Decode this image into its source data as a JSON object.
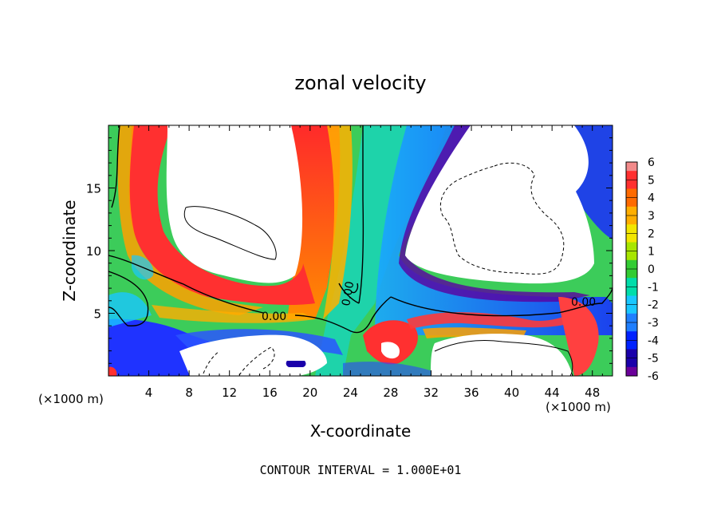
{
  "chart_data": {
    "type": "heatmap",
    "title": "zonal velocity",
    "xlabel": "X-coordinate",
    "ylabel": "Z-coordinate",
    "x_unit_left": "(×1000 m)",
    "x_unit_right": "(×1000 m)",
    "xlim": [
      0,
      50
    ],
    "ylim": [
      0,
      20
    ],
    "x_ticks": [
      4,
      8,
      12,
      16,
      20,
      24,
      28,
      32,
      36,
      40,
      44,
      48
    ],
    "y_ticks": [
      5,
      10,
      15
    ],
    "contour_label": "0.00",
    "contour_interval_text": "CONTOUR INTERVAL = 1.000E+01",
    "colorbar": {
      "levels": [
        6,
        5,
        4,
        3,
        2,
        1,
        0,
        -1,
        -2,
        -3,
        -4,
        -5,
        -6
      ],
      "colors": [
        "#f28a8a",
        "#ff3030",
        "#ff6a00",
        "#ffae00",
        "#f2e600",
        "#a8e600",
        "#33cc33",
        "#00ddaa",
        "#19c7ff",
        "#1f7fff",
        "#0022ff",
        "#1a00aa",
        "#6a0099"
      ]
    },
    "colors": {
      "background": "#ffffff",
      "plot_field": "#3ccc5a"
    }
  }
}
